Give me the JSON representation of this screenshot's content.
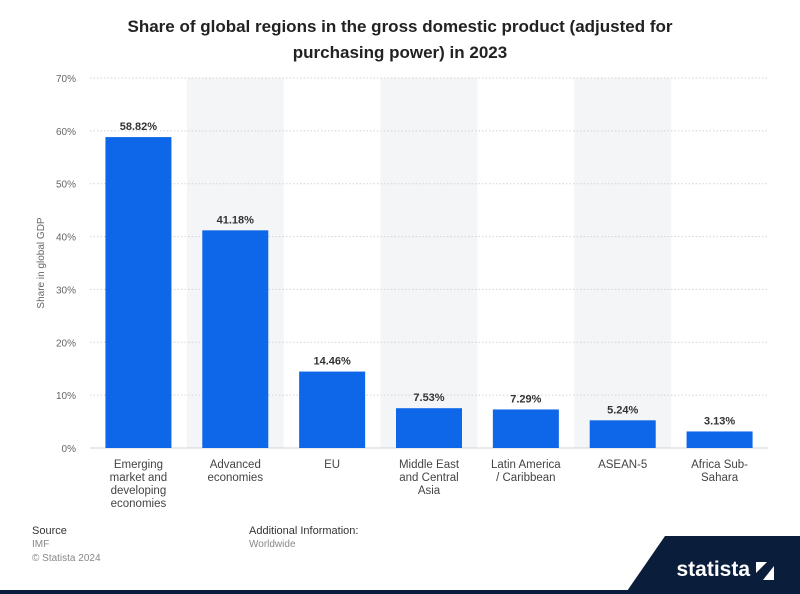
{
  "title": "Share of global regions in the gross domestic product (adjusted for purchasing power) in 2023",
  "chart_data": {
    "type": "bar",
    "title": "Share of global regions in the gross domestic product (adjusted for purchasing power) in 2023",
    "xlabel": "",
    "ylabel": "Share in global GDP",
    "ylim": [
      0,
      70
    ],
    "yticks": [
      "0%",
      "10%",
      "20%",
      "30%",
      "40%",
      "50%",
      "60%",
      "70%"
    ],
    "grid": true,
    "categories": [
      [
        "Emerging",
        "market and",
        "developing",
        "economies"
      ],
      [
        "Advanced",
        "economies"
      ],
      [
        "EU"
      ],
      [
        "Middle East",
        "and Central",
        "Asia"
      ],
      [
        "Latin America",
        "/ Caribbean"
      ],
      [
        "ASEAN-5"
      ],
      [
        "Africa Sub-",
        "Sahara"
      ]
    ],
    "values": [
      58.82,
      41.18,
      14.46,
      7.53,
      7.29,
      5.24,
      3.13
    ],
    "value_labels": [
      "58.82%",
      "41.18%",
      "14.46%",
      "7.53%",
      "7.29%",
      "5.24%",
      "3.13%"
    ],
    "bar_color": "#0e66e8"
  },
  "footer": {
    "source_label": "Source",
    "source_value": "IMF",
    "copyright": "© Statista 2024",
    "info_label": "Additional Information:",
    "info_value": "Worldwide"
  },
  "brand": {
    "name": "statista",
    "color": "#0a1e3c"
  }
}
